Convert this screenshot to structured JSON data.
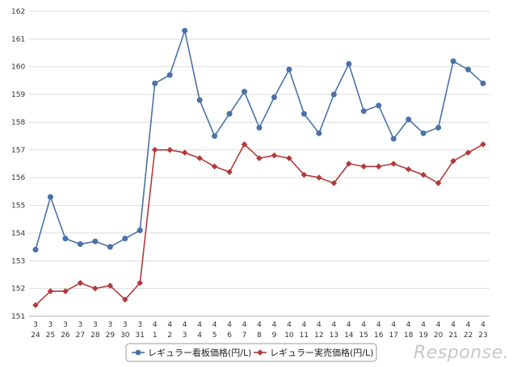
{
  "chart_data": {
    "type": "line",
    "categories": [
      [
        "3",
        "24"
      ],
      [
        "3",
        "25"
      ],
      [
        "3",
        "26"
      ],
      [
        "3",
        "27"
      ],
      [
        "3",
        "28"
      ],
      [
        "3",
        "29"
      ],
      [
        "3",
        "30"
      ],
      [
        "3",
        "31"
      ],
      [
        "4",
        "1"
      ],
      [
        "4",
        "2"
      ],
      [
        "4",
        "3"
      ],
      [
        "4",
        "4"
      ],
      [
        "4",
        "5"
      ],
      [
        "4",
        "6"
      ],
      [
        "4",
        "7"
      ],
      [
        "4",
        "8"
      ],
      [
        "4",
        "9"
      ],
      [
        "4",
        "10"
      ],
      [
        "4",
        "11"
      ],
      [
        "4",
        "12"
      ],
      [
        "4",
        "13"
      ],
      [
        "4",
        "14"
      ],
      [
        "4",
        "15"
      ],
      [
        "4",
        "16"
      ],
      [
        "4",
        "17"
      ],
      [
        "4",
        "18"
      ],
      [
        "4",
        "19"
      ],
      [
        "4",
        "20"
      ],
      [
        "4",
        "21"
      ],
      [
        "4",
        "22"
      ],
      [
        "4",
        "23"
      ]
    ],
    "series": [
      {
        "name": "レギュラー看板価格(円/L)",
        "color": "#4a72a8",
        "marker": "circle",
        "values": [
          153.4,
          155.3,
          153.8,
          153.6,
          153.7,
          153.5,
          153.8,
          154.1,
          159.4,
          159.7,
          161.3,
          158.8,
          157.5,
          158.3,
          159.1,
          157.8,
          158.9,
          159.9,
          158.3,
          157.6,
          159.0,
          160.1,
          158.4,
          158.6,
          157.4,
          158.1,
          157.6,
          157.8,
          160.2,
          159.9,
          159.4
        ]
      },
      {
        "name": "レギュラー実売価格(円/L)",
        "color": "#b23a3a",
        "marker": "diamond",
        "values": [
          151.4,
          151.9,
          151.9,
          152.2,
          152.0,
          152.1,
          151.6,
          152.2,
          157.0,
          157.0,
          156.9,
          156.7,
          156.4,
          156.2,
          157.2,
          156.7,
          156.8,
          156.7,
          156.1,
          156.0,
          155.8,
          156.5,
          156.4,
          156.4,
          156.5,
          156.3,
          156.1,
          155.8,
          156.6,
          156.9,
          157.2
        ]
      }
    ],
    "ylim": [
      151,
      162
    ],
    "yticks": [
      "151",
      "152",
      "153",
      "154",
      "155",
      "156",
      "157",
      "158",
      "159",
      "160",
      "161",
      "162"
    ],
    "grid": true,
    "legend_position": "bottom",
    "title": "",
    "xlabel": "",
    "ylabel": ""
  },
  "watermark": "Response."
}
